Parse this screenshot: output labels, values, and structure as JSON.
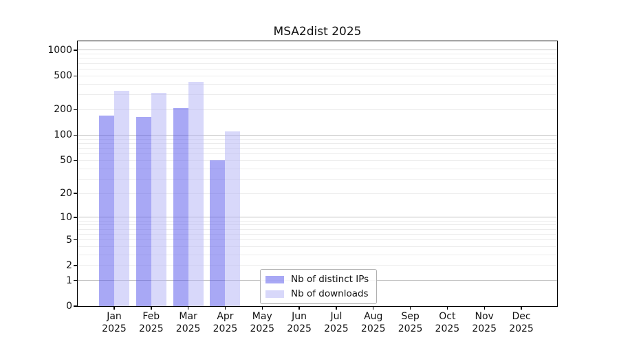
{
  "chart_data": {
    "type": "bar",
    "title": "MSA2dist 2025",
    "categories": [
      "Jan",
      "Feb",
      "Mar",
      "Apr",
      "May",
      "Jun",
      "Jul",
      "Aug",
      "Sep",
      "Oct",
      "Nov",
      "Dec"
    ],
    "x_tick_second_line": "2025",
    "series": [
      {
        "name": "Nb of distinct IPs",
        "color": "#5151eb",
        "alpha": 0.5,
        "values": [
          170,
          165,
          210,
          50,
          0,
          0,
          0,
          0,
          0,
          0,
          0,
          0
        ]
      },
      {
        "name": "Nb of downloads",
        "color": "#b1b1f5",
        "alpha": 0.5,
        "values": [
          335,
          315,
          425,
          110,
          0,
          0,
          0,
          0,
          0,
          0,
          0,
          0
        ]
      }
    ],
    "yscale": "log1p",
    "ylim": [
      0,
      1270
    ],
    "yticks": [
      1000,
      500,
      200,
      100,
      50,
      20,
      10,
      5,
      2,
      1,
      0
    ],
    "grid": "on",
    "legend_position": "lower-center"
  },
  "colors": {
    "bar_distinct_ips_rendered": "#a8a8f5",
    "bar_downloads_rendered": "#d8d8fa",
    "major_gridline": "#c0c0c0",
    "minor_gridline": "#ececec",
    "axis": "#000000",
    "background": "#ffffff"
  }
}
